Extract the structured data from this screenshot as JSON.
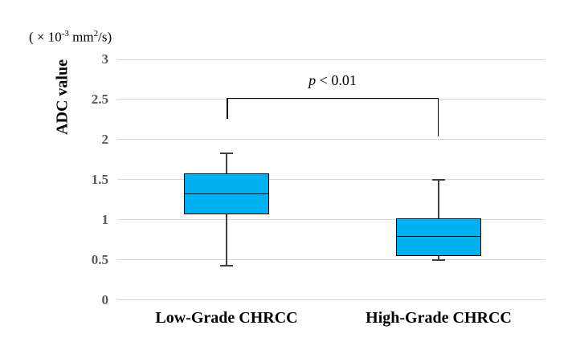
{
  "figure": {
    "unit_label": {
      "pre": "( × 10",
      "sup1": "-3",
      "mid": " mm",
      "sup2": "2",
      "post": "/s)"
    },
    "ylabel": "ADC value",
    "annotation": {
      "p_italic": "p",
      "rest": " < 0.01"
    }
  },
  "chart_data": {
    "type": "boxplot",
    "title": "",
    "ylabel": "ADC value",
    "y_unit": "(×10-3 mm2/s)",
    "xlabel": "",
    "ylim": [
      0,
      3
    ],
    "grid": "horizontal-light-gray",
    "legend": "none",
    "categories": [
      "Low-Grade CHRCC",
      "High-Grade CHRCC"
    ],
    "yticks": [
      {
        "label": "0",
        "value": 0
      },
      {
        "label": "0.5",
        "value": 0.5
      },
      {
        "label": "1",
        "value": 1
      },
      {
        "label": "1.5",
        "value": 1.5
      },
      {
        "label": "2",
        "value": 2
      },
      {
        "label": "2.5",
        "value": 2.5
      },
      {
        "label": "3",
        "value": 3
      }
    ],
    "series": [
      {
        "name": "Low-Grade CHRCC",
        "whisker_low": 0.43,
        "q1": 1.07,
        "median": 1.32,
        "q3": 1.58,
        "whisker_high": 1.83
      },
      {
        "name": "High-Grade CHRCC",
        "whisker_low": 0.5,
        "q1": 0.55,
        "median": 0.79,
        "q3": 1.02,
        "whisker_high": 1.5
      }
    ],
    "significance": {
      "label": "p < 0.01",
      "connects": [
        "Low-Grade CHRCC",
        "High-Grade CHRCC"
      ],
      "bracket_top_value": 2.52,
      "left_drop_to_value": 2.26,
      "right_drop_to_value": 2.04
    },
    "colors": {
      "box_fill": "#00B0F0",
      "box_border": "#000000",
      "median": "#000000",
      "whisker": "#404040",
      "gridline": "#D9D9D9",
      "tick_label": "#595959",
      "category_label": "#000000",
      "bracket": "#000000"
    }
  }
}
